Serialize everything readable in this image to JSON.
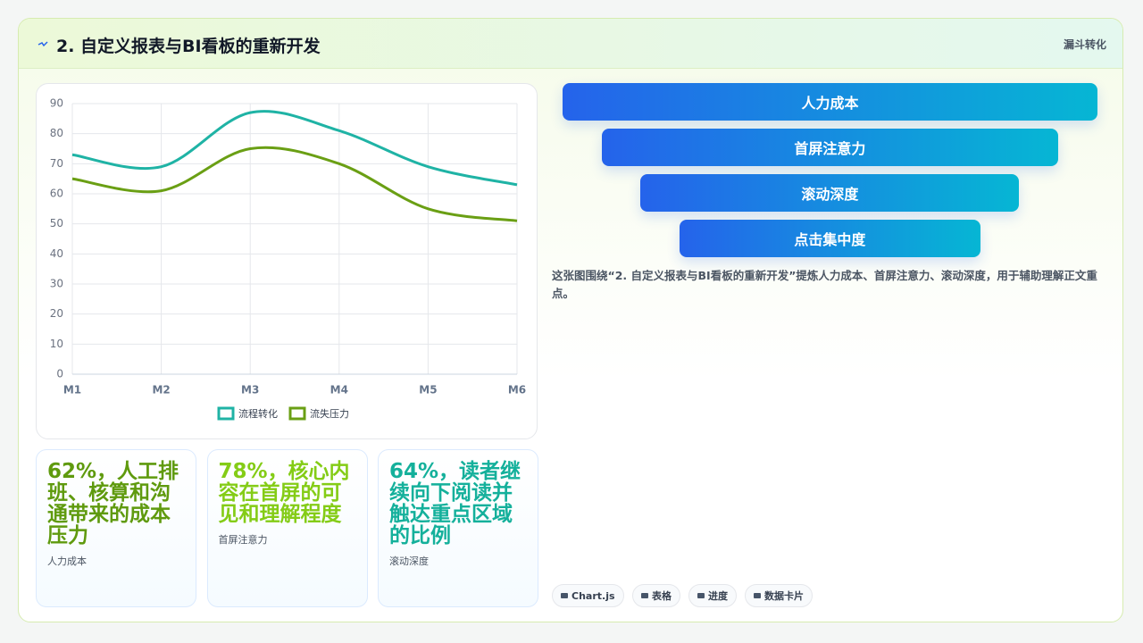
{
  "header": {
    "title": "2. 自定义报表与BI看板的重新开发",
    "tag": "漏斗转化"
  },
  "chart_data": {
    "type": "line",
    "categories": [
      "M1",
      "M2",
      "M3",
      "M4",
      "M5",
      "M6"
    ],
    "series": [
      {
        "name": "流程转化",
        "color": "#1fb3a5",
        "values": [
          73,
          69,
          87,
          81,
          69,
          63
        ]
      },
      {
        "name": "流失压力",
        "color": "#6a9f14",
        "values": [
          65,
          61,
          75,
          70,
          55,
          51
        ]
      }
    ],
    "ylim": [
      0,
      90
    ],
    "yticks": [
      0,
      10,
      20,
      30,
      40,
      50,
      60,
      70,
      80,
      90
    ],
    "grid": true
  },
  "funnel": {
    "items": [
      "人力成本",
      "首屏注意力",
      "滚动深度",
      "点击集中度"
    ]
  },
  "description": "这张图围绕“2. 自定义报表与BI看板的重新开发”提炼人力成本、首屏注意力、滚动深度，用于辅助理解正文重点。",
  "cards": [
    {
      "text": "62%，人工排班、核算和沟通带来的成本压力",
      "label": "人力成本",
      "color": "#5f9a0e"
    },
    {
      "text": "78%，核心内容在首屏的可见和理解程度",
      "label": "首屏注意力",
      "color": "#84cc16"
    },
    {
      "text": "64%，读者继续向下阅读并触达重点区域的比例",
      "label": "滚动深度",
      "color": "#14b09b"
    }
  ],
  "tags": [
    "Chart.js",
    "表格",
    "进度",
    "数据卡片"
  ]
}
